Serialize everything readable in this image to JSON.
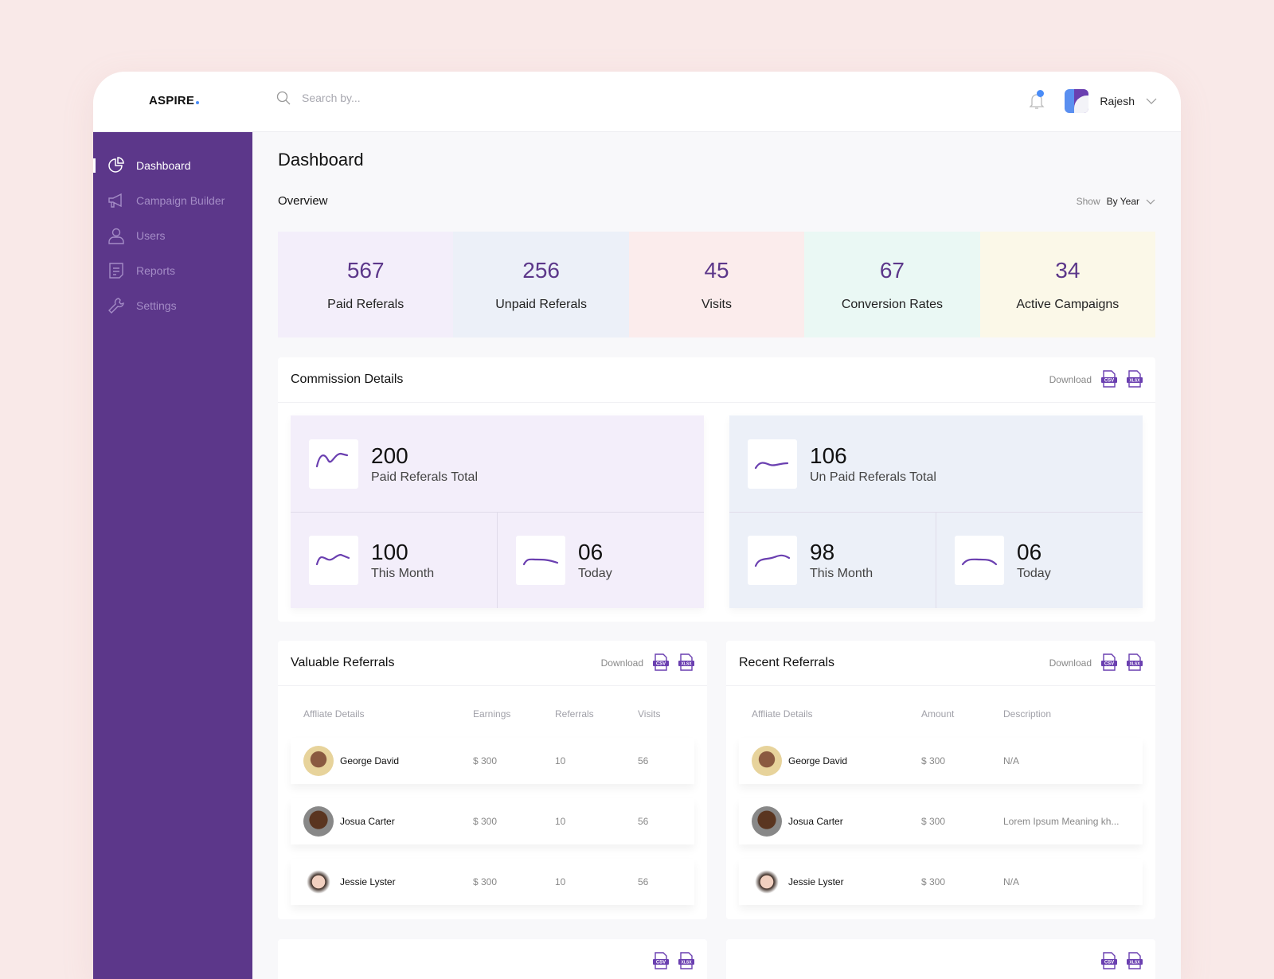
{
  "header": {
    "logo": "ASPIRE",
    "search_placeholder": "Search by...",
    "user": "Rajesh"
  },
  "sidebar": {
    "items": [
      {
        "label": "Dashboard",
        "icon": "pie-chart-icon",
        "active": true
      },
      {
        "label": "Campaign Builder",
        "icon": "megaphone-icon"
      },
      {
        "label": "Users",
        "icon": "user-icon"
      },
      {
        "label": "Reports",
        "icon": "document-icon"
      },
      {
        "label": "Settings",
        "icon": "wrench-icon"
      }
    ]
  },
  "main": {
    "title": "Dashboard",
    "overview": "Overview",
    "show_label": "Show",
    "show_value": "By Year",
    "stats": [
      {
        "value": "567",
        "label": "Paid Referals",
        "color": "#f3eefa"
      },
      {
        "value": "256",
        "label": "Unpaid Referals",
        "color": "#ecf0f8"
      },
      {
        "value": "45",
        "label": "Visits",
        "color": "#fbecec"
      },
      {
        "value": "67",
        "label": "Conversion Rates",
        "color": "#eaf8f4"
      },
      {
        "value": "34",
        "label": "Active Campaigns",
        "color": "#fbf8e8"
      }
    ]
  },
  "commission": {
    "title": "Commission Details",
    "download": "Download",
    "paid": {
      "total": "200",
      "total_label": "Paid Referals Total",
      "month": "100",
      "month_label": "This Month",
      "today": "06",
      "today_label": "Today"
    },
    "unpaid": {
      "total": "106",
      "total_label": "Un Paid Referals Total",
      "month": "98",
      "month_label": "This Month",
      "today": "06",
      "today_label": "Today"
    }
  },
  "valuable": {
    "title": "Valuable Referrals",
    "download": "Download",
    "columns": [
      "Affliate Details",
      "Earnings",
      "Referrals",
      "Visits"
    ],
    "rows": [
      {
        "name": "George David",
        "earnings": "$ 300",
        "referrals": "10",
        "visits": "56"
      },
      {
        "name": "Josua Carter",
        "earnings": "$ 300",
        "referrals": "10",
        "visits": "56"
      },
      {
        "name": "Jessie Lyster",
        "earnings": "$ 300",
        "referrals": "10",
        "visits": "56"
      }
    ]
  },
  "recent": {
    "title": "Recent Referrals",
    "download": "Download",
    "columns": [
      "Affliate Details",
      "Amount",
      "Description"
    ],
    "rows": [
      {
        "name": "George David",
        "amount": "$ 300",
        "description": "N/A"
      },
      {
        "name": "Josua Carter",
        "amount": "$ 300",
        "description": "Lorem Ipsum Meaning kh..."
      },
      {
        "name": "Jessie Lyster",
        "amount": "$ 300",
        "description": "N/A"
      }
    ]
  },
  "file_labels": {
    "csv": "CSV",
    "xlsx": "XLSX"
  },
  "colors": {
    "accent": "#5c378a",
    "notification": "#4a8cf7"
  }
}
